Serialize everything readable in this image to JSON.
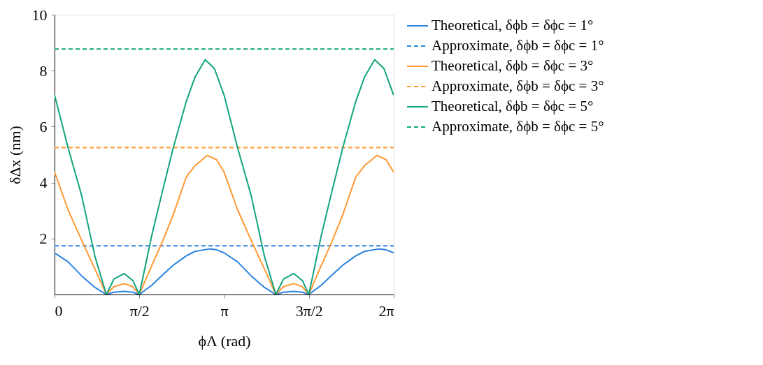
{
  "chart_data": {
    "type": "line",
    "xlabel": "ϕΛ (rad)",
    "ylabel": "δΔx (nm)",
    "xlim": [
      0,
      6.2832
    ],
    "xticks": [
      {
        "value": 0,
        "label": "0"
      },
      {
        "value": 1.5708,
        "label": "π/2"
      },
      {
        "value": 3.1416,
        "label": "π"
      },
      {
        "value": 4.7124,
        "label": "3π/2"
      },
      {
        "value": 6.2832,
        "label": "2π"
      }
    ],
    "ylim": [
      0,
      10
    ],
    "yticks": [
      2,
      4,
      6,
      8,
      10
    ],
    "grid": false,
    "legend": "right",
    "series": [
      {
        "name": "Theoretical, δϕb = δϕc = 1°",
        "color": "#2b83e0",
        "line_style": "solid",
        "x": [
          0,
          0.25,
          0.5,
          0.75,
          0.96,
          1.1,
          1.29,
          1.45,
          1.57,
          1.8,
          2.0,
          2.2,
          2.44,
          2.6,
          2.87,
          3.0,
          3.14,
          3.39,
          3.64,
          3.89,
          4.1,
          4.24,
          4.43,
          4.59,
          4.71,
          4.94,
          5.14,
          5.34,
          5.58,
          5.74,
          6.01,
          6.14,
          6.28
        ],
        "values": [
          1.49,
          1.17,
          0.67,
          0.25,
          0,
          0.08,
          0.11,
          0.08,
          0,
          0.33,
          0.7,
          1.05,
          1.38,
          1.54,
          1.63,
          1.6,
          1.49,
          1.17,
          0.67,
          0.25,
          0,
          0.08,
          0.11,
          0.08,
          0,
          0.33,
          0.7,
          1.05,
          1.38,
          1.54,
          1.63,
          1.6,
          1.49
        ]
      },
      {
        "name": "Approximate, δϕb = δϕc = 1°",
        "color": "#2b83e0",
        "line_style": "dashed",
        "x": [
          0,
          6.2832
        ],
        "values": [
          1.74,
          1.74
        ]
      },
      {
        "name": "Theoretical, δϕb = δϕc = 3°",
        "color": "#ff9933",
        "line_style": "solid",
        "x": [
          0,
          0.25,
          0.5,
          0.75,
          0.96,
          1.1,
          1.29,
          1.45,
          1.57,
          1.8,
          2.0,
          2.2,
          2.44,
          2.6,
          2.83,
          3.0,
          3.14,
          3.39,
          3.64,
          3.89,
          4.1,
          4.24,
          4.43,
          4.59,
          4.71,
          4.94,
          5.14,
          5.34,
          5.58,
          5.74,
          5.97,
          6.14,
          6.28
        ],
        "values": [
          4.38,
          3.03,
          1.95,
          0.9,
          0,
          0.28,
          0.39,
          0.28,
          0,
          1.03,
          1.9,
          2.86,
          4.2,
          4.6,
          4.97,
          4.82,
          4.38,
          3.03,
          1.95,
          0.9,
          0,
          0.28,
          0.39,
          0.28,
          0,
          1.03,
          1.9,
          2.86,
          4.2,
          4.6,
          4.97,
          4.82,
          4.38
        ]
      },
      {
        "name": "Approximate, δϕb = δϕc = 3°",
        "color": "#ff9933",
        "line_style": "dashed",
        "x": [
          0,
          6.2832
        ],
        "values": [
          5.25,
          5.25
        ]
      },
      {
        "name": "Theoretical, δϕb = δϕc = 5°",
        "color": "#12a37f",
        "line_style": "solid",
        "x": [
          0,
          0.25,
          0.5,
          0.75,
          0.96,
          1.1,
          1.29,
          1.45,
          1.57,
          1.8,
          2.0,
          2.2,
          2.44,
          2.6,
          2.79,
          2.96,
          3.14,
          3.39,
          3.64,
          3.89,
          4.1,
          4.24,
          4.43,
          4.59,
          4.71,
          4.94,
          5.14,
          5.34,
          5.58,
          5.74,
          5.93,
          6.1,
          6.28
        ],
        "values": [
          7.13,
          5.25,
          3.55,
          1.35,
          0,
          0.55,
          0.75,
          0.5,
          0,
          2.1,
          3.7,
          5.25,
          6.9,
          7.76,
          8.39,
          8.08,
          7.13,
          5.25,
          3.55,
          1.35,
          0,
          0.55,
          0.75,
          0.5,
          0,
          2.1,
          3.7,
          5.25,
          6.9,
          7.76,
          8.39,
          8.08,
          7.13
        ]
      },
      {
        "name": "Approximate, δϕb = δϕc = 5°",
        "color": "#12a37f",
        "line_style": "dashed",
        "x": [
          0,
          6.2832
        ],
        "values": [
          8.77,
          8.77
        ]
      }
    ]
  }
}
